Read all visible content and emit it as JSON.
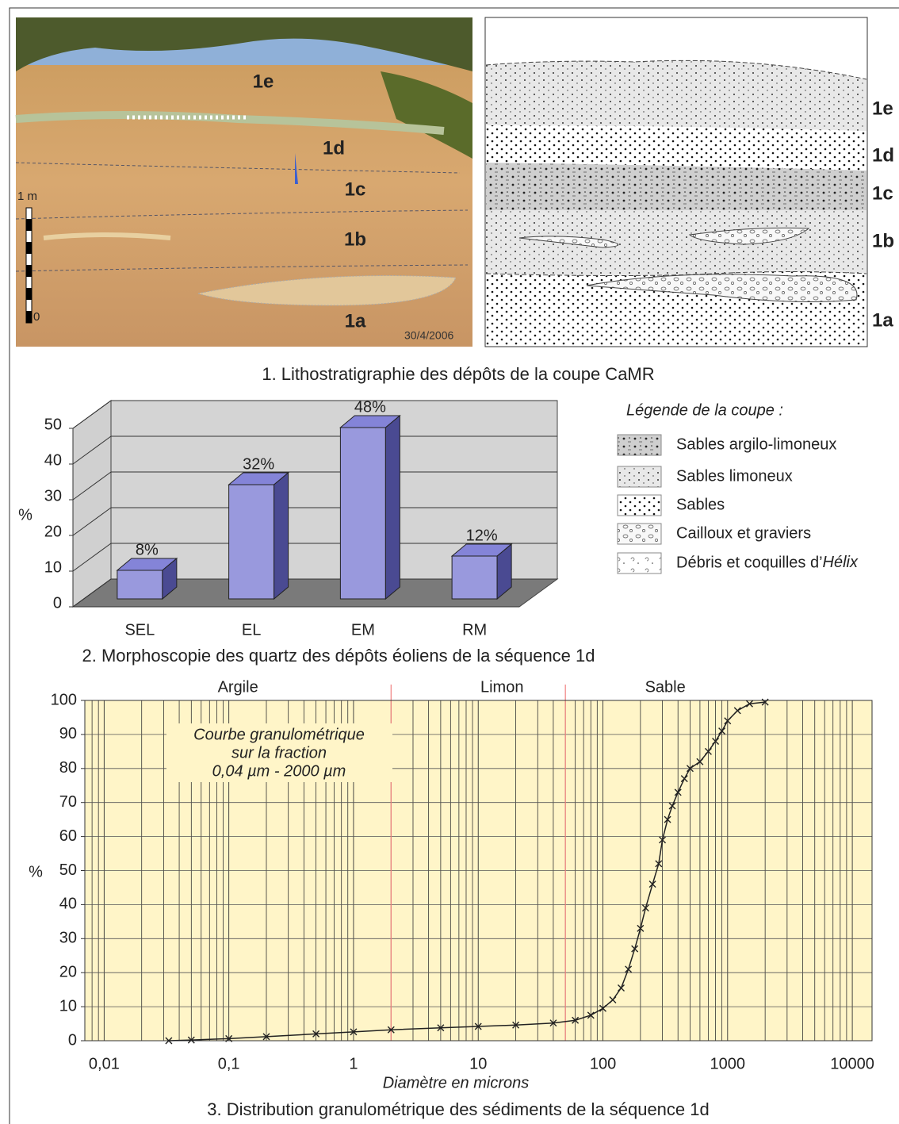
{
  "section1": {
    "photo_labels": [
      "1e",
      "1d",
      "1c",
      "1b",
      "1a"
    ],
    "scale_top": "1 m",
    "scale_bottom": "0",
    "date": "30/4/2006",
    "section_labels": [
      "1e",
      "1d",
      "1c",
      "1b",
      "1a"
    ],
    "caption": "1. Lithostratigraphie des dépôts de la coupe CaMR"
  },
  "legend": {
    "title": "Légende de la coupe :",
    "items": [
      {
        "label": "Sables argilo-limoneux"
      },
      {
        "label": "Sables limoneux"
      },
      {
        "label": "Sables"
      },
      {
        "label": "Cailloux et graviers"
      },
      {
        "label": "Débris et coquilles d’",
        "italic": "Hélix"
      }
    ]
  },
  "chart_data": [
    {
      "type": "bar",
      "title": "2. Morphoscopie des quartz des dépôts éoliens de la séquence 1d",
      "categories": [
        "SEL",
        "EL",
        "EM",
        "RM"
      ],
      "values": [
        8,
        32,
        48,
        12
      ],
      "value_labels": [
        "8%",
        "32%",
        "48%",
        "12%"
      ],
      "color": "#9999dd",
      "ylim": [
        0,
        50
      ],
      "yticks": [
        0,
        10,
        20,
        30,
        40,
        50
      ],
      "ylabel": "%",
      "grid": true
    },
    {
      "type": "line",
      "title": "3. Distribution granulométrique des sédiments de la séquence 1d",
      "xlabel": "Diamètre en microns",
      "ylabel": "%",
      "xscale": "log",
      "grid": true,
      "minor_grid": true,
      "color": "#222222",
      "background": "#fff5c8",
      "annotation": [
        "Courbe granulométrique",
        "sur la fraction",
        "0,04 µm - 2000 µm"
      ],
      "zones": [
        {
          "label": "Argile"
        },
        {
          "label": "Limon"
        },
        {
          "label": "Sable"
        }
      ],
      "zone_boundaries": [
        2,
        50
      ],
      "boundary_color": "#f08080",
      "xlim": [
        0.007,
        14400
      ],
      "xticks": [
        {
          "value": 0.01,
          "label": "0,01"
        },
        {
          "value": 0.1,
          "label": "0,1"
        },
        1,
        10,
        100,
        1000,
        10000
      ],
      "ylim": [
        0,
        100
      ],
      "yticks": [
        0,
        10,
        20,
        30,
        40,
        50,
        60,
        70,
        80,
        90,
        100
      ],
      "x": [
        0.033,
        0.05,
        0.1,
        0.2,
        0.5,
        1,
        2,
        5,
        10,
        20,
        40,
        60,
        80,
        100,
        120,
        140,
        160,
        180,
        200,
        220,
        250,
        280,
        300,
        330,
        360,
        400,
        450,
        500,
        600,
        700,
        800,
        900,
        1000,
        1200,
        1500,
        2000
      ],
      "values": [
        0,
        0.2,
        0.6,
        1.2,
        2,
        2.6,
        3.2,
        3.8,
        4.2,
        4.6,
        5.2,
        6,
        7.5,
        9.5,
        12,
        15.5,
        21,
        27,
        33,
        39,
        46,
        52,
        59,
        65,
        69,
        73,
        77,
        80,
        82,
        85,
        88,
        91,
        94,
        97,
        99,
        99.5
      ]
    }
  ]
}
